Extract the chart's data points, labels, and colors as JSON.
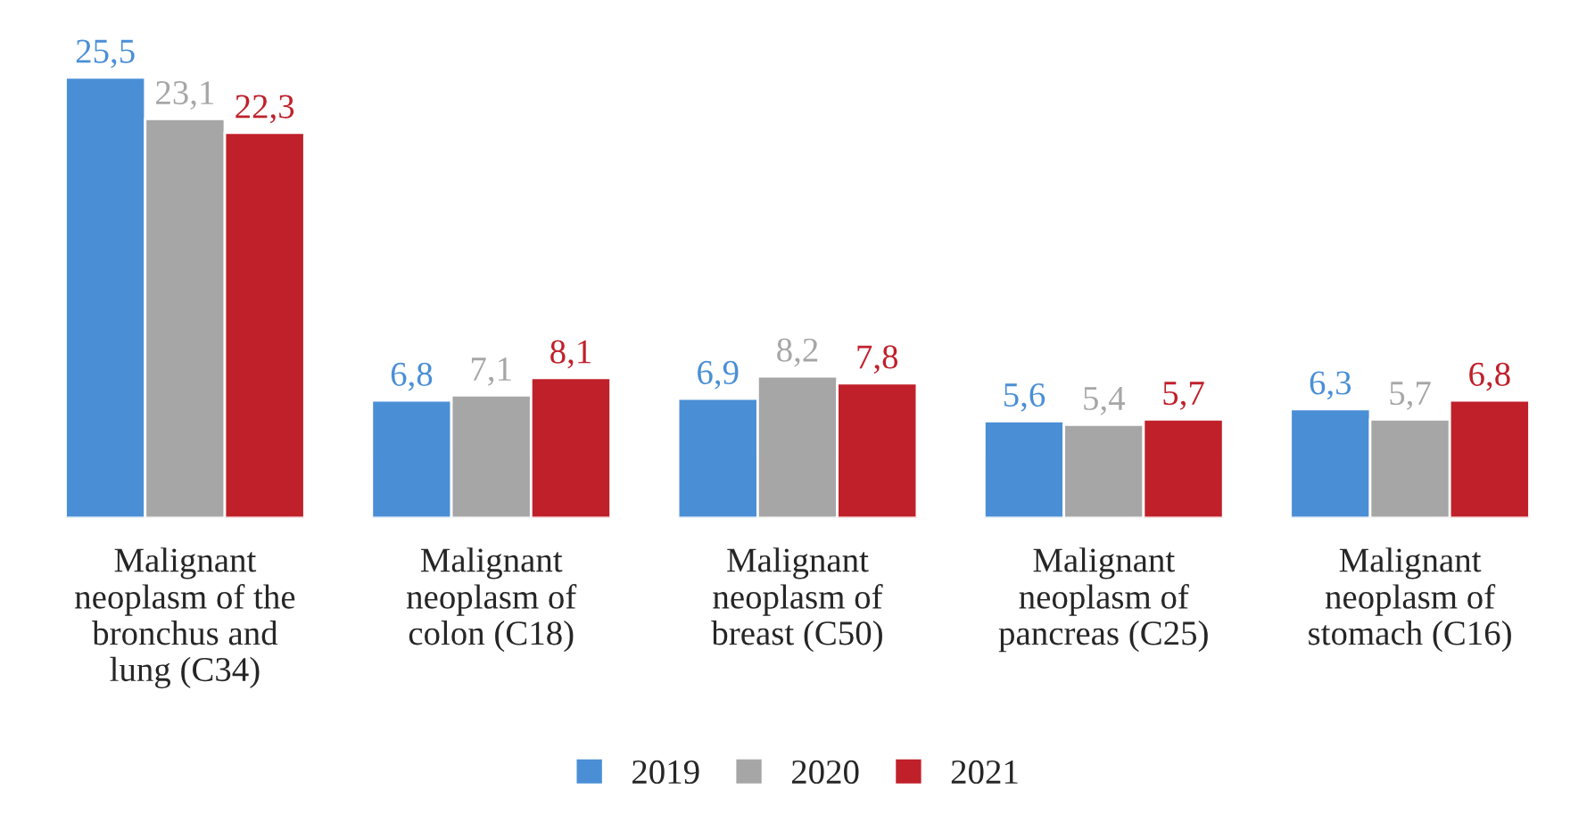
{
  "chart_data": {
    "type": "bar",
    "categories": [
      "Malignant\nneoplasm of the\nbronchus and\nlung (C34)",
      "Malignant\nneoplasm of\ncolon (C18)",
      "Malignant\nneoplasm of\nbreast (C50)",
      "Malignant\nneoplasm of\npancreas (C25)",
      "Malignant\nneoplasm of\nstomach (C16)"
    ],
    "series": [
      {
        "name": "2019",
        "color": "#4a8fd6",
        "values": [
          25.5,
          6.8,
          6.9,
          5.6,
          6.3
        ],
        "value_labels": [
          "25,5",
          "6,8",
          "6,9",
          "5,6",
          "6,3"
        ]
      },
      {
        "name": "2020",
        "color": "#a6a6a6",
        "values": [
          23.1,
          7.1,
          8.2,
          5.4,
          5.7
        ],
        "value_labels": [
          "23,1",
          "7,1",
          "8,2",
          "5,4",
          "5,7"
        ]
      },
      {
        "name": "2021",
        "color": "#c0202a",
        "values": [
          22.3,
          8.1,
          7.8,
          5.7,
          6.8
        ],
        "value_labels": [
          "22,3",
          "8,1",
          "7,8",
          "5,7",
          "6,8"
        ]
      }
    ],
    "legend": "bottom",
    "grid": false
  }
}
